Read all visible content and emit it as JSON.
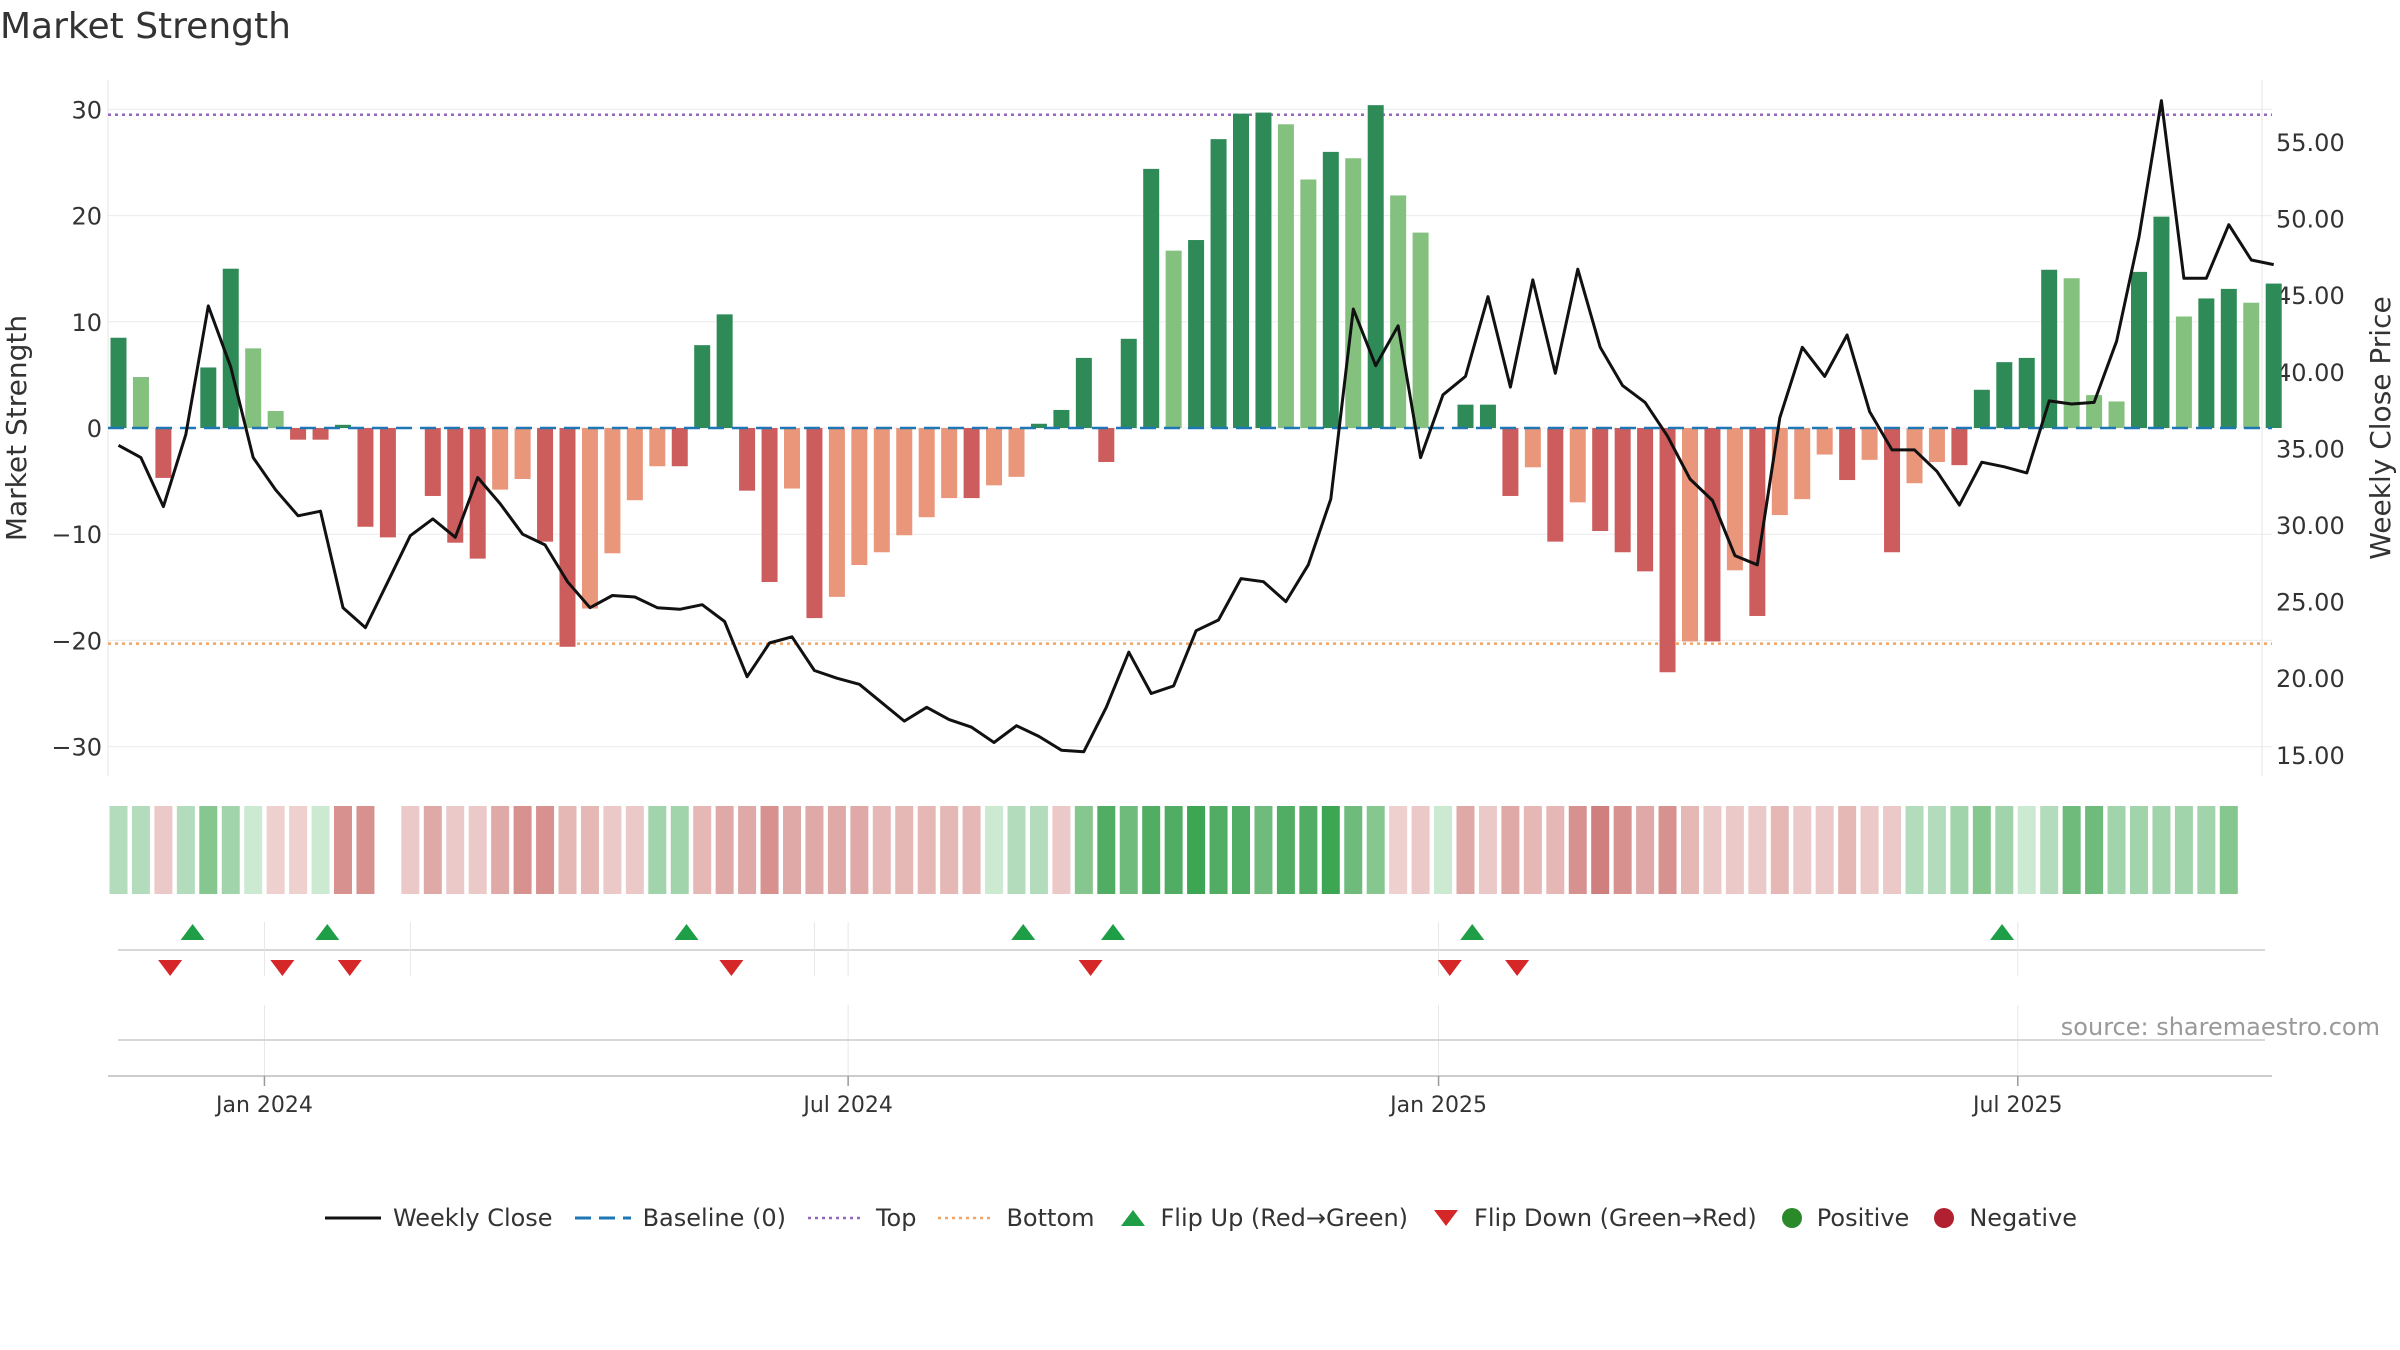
{
  "title": "Market Strength",
  "source": "source: sharemaestro.com",
  "colors": {
    "pos_strong": "#2e8b57",
    "pos_light": "#84c17f",
    "neg_strong": "#cd5c5c",
    "neg_light": "#e9967a",
    "close_line": "#111111",
    "baseline": "#1f77b4",
    "top": "#9467bd",
    "bottom": "#f4a460",
    "flip_up": "#1e9e46",
    "flip_down": "#d62728",
    "positive_dot": "#2a8a2a",
    "negative_dot": "#b02030"
  },
  "chart_data": {
    "type": "bar",
    "title": "Market Strength",
    "ylabel": "Market Strength",
    "y2label": "Weekly Close Price",
    "ylim": [
      -33,
      33
    ],
    "y2lim": [
      13.25,
      60.5
    ],
    "yticks": [
      30,
      20,
      10,
      0,
      -10,
      -20,
      -30
    ],
    "ytick_labels": [
      "30",
      "20",
      "10",
      "0",
      "−10",
      "−20",
      "−30"
    ],
    "y2ticks": [
      55,
      50,
      45,
      40,
      35,
      30,
      25,
      20,
      15
    ],
    "y2tick_labels": [
      "55.00",
      "50.00",
      "45.00",
      "40.00",
      "35.00",
      "30.00",
      "25.00",
      "20.00",
      "15.00"
    ],
    "x_ticks": [
      {
        "label": "Jan 2024",
        "week": 6.5
      },
      {
        "label": "Jul 2024",
        "week": 32.5
      },
      {
        "label": "Jan 2025",
        "week": 58.8
      },
      {
        "label": "Jul 2025",
        "week": 84.6
      }
    ],
    "top_line": 29.5,
    "bottom_line": -20.3,
    "baseline": 0,
    "strength": [
      8.5,
      4.8,
      -4.7,
      0,
      5.7,
      15,
      7.5,
      1.6,
      -1.1,
      -1.1,
      0.3,
      -9.3,
      -10.3,
      0,
      -6.4,
      -10.8,
      -12.3,
      -5.8,
      -4.8,
      -10.7,
      -20.6,
      -17,
      -11.8,
      -6.8,
      -3.6,
      -3.6,
      7.8,
      10.7,
      -5.9,
      -14.5,
      -5.7,
      -17.9,
      -15.9,
      -12.9,
      -11.7,
      -10.1,
      -8.4,
      -6.6,
      -6.6,
      -5.4,
      -4.6,
      0.4,
      1.7,
      6.6,
      -3.2,
      8.4,
      24.4,
      16.7,
      17.7,
      27.2,
      29.6,
      29.7,
      28.6,
      23.4,
      26,
      25.4,
      30.4,
      21.9,
      18.4,
      0,
      2.2,
      2.2,
      -6.4,
      -3.7,
      -10.7,
      -7,
      -9.7,
      -11.7,
      -13.5,
      -23,
      -20.1,
      -20.1,
      -13.4,
      -17.7,
      -8.2,
      -6.7,
      -2.5,
      -4.9,
      -3,
      -11.7,
      -5.2,
      -3.2,
      -3.5,
      3.6,
      6.2,
      6.6,
      14.9,
      14.1,
      3.1,
      2.5,
      14.7,
      19.9,
      10.5,
      12.2,
      13.1,
      11.8,
      13.6
    ],
    "close": [
      35.2,
      34.4,
      31.2,
      35.9,
      44.3,
      40.3,
      34.4,
      32.3,
      30.6,
      30.9,
      24.6,
      23.3,
      26.3,
      29.3,
      30.4,
      29.2,
      33.1,
      31.4,
      29.4,
      28.7,
      26.3,
      24.6,
      25.4,
      25.3,
      24.6,
      24.5,
      24.8,
      23.7,
      20.1,
      22.3,
      22.7,
      20.5,
      20.0,
      19.6,
      18.4,
      17.2,
      18.1,
      17.3,
      16.8,
      15.8,
      16.9,
      16.2,
      15.3,
      15.2,
      18.1,
      21.7,
      19.0,
      19.5,
      23.1,
      23.8,
      26.5,
      26.3,
      25.0,
      27.4,
      31.7,
      44.1,
      40.4,
      43.0,
      34.4,
      38.5,
      39.7,
      44.9,
      39.0,
      46.0,
      39.9,
      46.7,
      41.6,
      39.1,
      38.0,
      35.8,
      33.0,
      31.6,
      28.0,
      27.4,
      37.0,
      41.6,
      39.7,
      42.4,
      37.4,
      34.9,
      34.9,
      33.5,
      31.3,
      34.1,
      33.8,
      33.4,
      38.1,
      37.9,
      38.0,
      42.0,
      48.8,
      57.7,
      46.1,
      46.1,
      49.6,
      47.3,
      47.0
    ],
    "heat_strips": [
      "#b3dcbc",
      "#b3dcbc",
      "#ecc9c9",
      "#b3dcbc",
      "#86c68f",
      "#a2d4ab",
      "#ccead1",
      "#eed0cf",
      "#eed0cf",
      "#ccead1",
      "#d79290",
      "#d79290",
      null,
      "#ecc9c9",
      "#dea9a7",
      "#ecc9c9",
      "#ecc9c9",
      "#dea9a7",
      "#d79290",
      "#d79290",
      "#e5b8b6",
      "#e5b8b6",
      "#ecc9c9",
      "#ecc9c9",
      "#a2d4ab",
      "#a2d4ab",
      "#e5b8b6",
      "#dea9a7",
      "#dea9a7",
      "#d79290",
      "#dea9a7",
      "#dea9a7",
      "#dea9a7",
      "#dea9a7",
      "#e5b8b6",
      "#e5b8b6",
      "#e5b8b6",
      "#e5b8b6",
      "#e5b8b6",
      "#ccead1",
      "#b3dcbc",
      "#b3dcbc",
      "#ecc9c9",
      "#86c68f",
      "#52ad64",
      "#6ebb7b",
      "#52ad64",
      "#52ad64",
      "#3ca653",
      "#52ad64",
      "#52ad64",
      "#6ebb7b",
      "#52ad64",
      "#52ad64",
      "#3ca653",
      "#6ebb7b",
      "#86c68f",
      "#eed0cf",
      "#ecc9c9",
      "#ccead1",
      "#dea9a7",
      "#ecc9c9",
      "#dea9a7",
      "#e5b8b6",
      "#e5b8b6",
      "#d79290",
      "#cf7f7d",
      "#d79290",
      "#dea9a7",
      "#d79290",
      "#e5b8b6",
      "#ecc9c9",
      "#ecc9c9",
      "#ecc9c9",
      "#e5b8b6",
      "#ecc9c9",
      "#ecc9c9",
      "#e5b8b6",
      "#ecc9c9",
      "#ecc9c9",
      "#b3dcbc",
      "#b3dcbc",
      "#a2d4ab",
      "#86c68f",
      "#a2d4ab",
      "#ccead1",
      "#b3dcbc",
      "#6ebb7b",
      "#6ebb7b",
      "#a2d4ab",
      "#a2d4ab",
      "#a2d4ab",
      "#a2d4ab",
      "#a2d4ab",
      "#86c68f"
    ],
    "flip_up_weeks": [
      3.3,
      9.3,
      25.3,
      40.3,
      44.3,
      60.3,
      83.9
    ],
    "flip_down_weeks": [
      2.3,
      7.3,
      10.3,
      27.3,
      43.3,
      59.3,
      62.3
    ]
  },
  "legend": {
    "weekly_close": "Weekly Close",
    "baseline": "Baseline (0)",
    "top": "Top",
    "bottom": "Bottom",
    "flip_up": "Flip Up (Red→Green)",
    "flip_down": "Flip Down (Green→Red)",
    "positive": "Positive",
    "negative": "Negative"
  }
}
